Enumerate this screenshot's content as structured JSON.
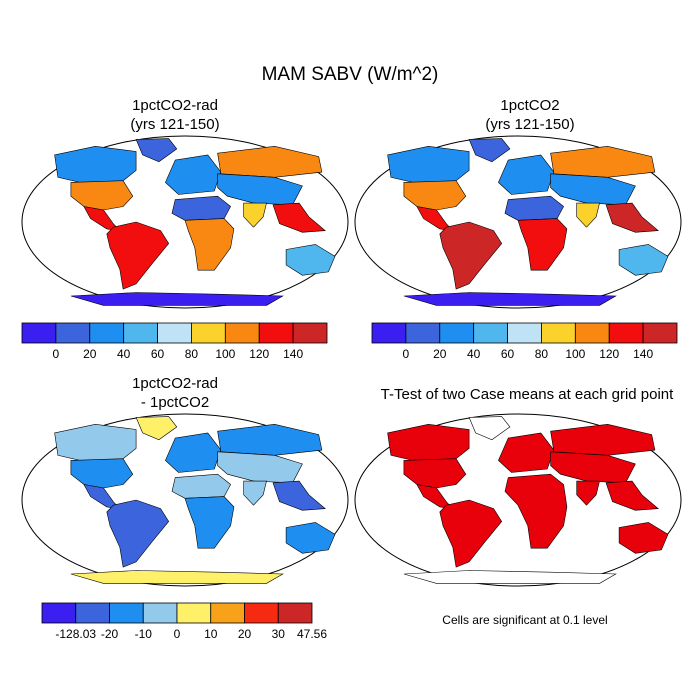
{
  "title": "MAM SABV (W/m^2)",
  "colors": {
    "land_outline": "#000000",
    "ocean": "#ffffff",
    "significant": "#e8000b"
  },
  "chart_data": [
    {
      "type": "heatmap",
      "panel": "top-left",
      "title_line1": "1pctCO2-rad",
      "title_line2": "(yrs 121-150)",
      "colorbar": {
        "tick_labels": [
          "0",
          "20",
          "40",
          "60",
          "80",
          "100",
          "120",
          "140"
        ],
        "colors": [
          "#3a1ff0",
          "#3c64dc",
          "#1e8ff0",
          "#50b6ee",
          "#c0e2f5",
          "#fbd12b",
          "#f88812",
          "#f20e0e",
          "#cc2626"
        ]
      },
      "regions": [
        {
          "name": "Antarctica",
          "class": 0
        },
        {
          "name": "Greenland",
          "class": 1
        },
        {
          "name": "Canada",
          "class": 2
        },
        {
          "name": "United States",
          "class": 6
        },
        {
          "name": "Mexico",
          "class": 7
        },
        {
          "name": "South America",
          "class": 7
        },
        {
          "name": "Sahara",
          "class": 1
        },
        {
          "name": "Central Africa",
          "class": 6
        },
        {
          "name": "Europe",
          "class": 2
        },
        {
          "name": "Siberia",
          "class": 6
        },
        {
          "name": "Central Asia",
          "class": 2
        },
        {
          "name": "India",
          "class": 5
        },
        {
          "name": "Southeast Asia",
          "class": 7
        },
        {
          "name": "Australia",
          "class": 3
        }
      ]
    },
    {
      "type": "heatmap",
      "panel": "top-right",
      "title_line1": "1pctCO2",
      "title_line2": "(yrs 121-150)",
      "colorbar": {
        "tick_labels": [
          "0",
          "20",
          "40",
          "60",
          "80",
          "100",
          "120",
          "140"
        ],
        "colors": [
          "#3a1ff0",
          "#3c64dc",
          "#1e8ff0",
          "#50b6ee",
          "#c0e2f5",
          "#fbd12b",
          "#f88812",
          "#f20e0e",
          "#cc2626"
        ]
      },
      "regions": [
        {
          "name": "Antarctica",
          "class": 0
        },
        {
          "name": "Greenland",
          "class": 1
        },
        {
          "name": "Canada",
          "class": 2
        },
        {
          "name": "United States",
          "class": 6
        },
        {
          "name": "Mexico",
          "class": 7
        },
        {
          "name": "South America",
          "class": 8
        },
        {
          "name": "Sahara",
          "class": 1
        },
        {
          "name": "Central Africa",
          "class": 7
        },
        {
          "name": "Europe",
          "class": 2
        },
        {
          "name": "Siberia",
          "class": 6
        },
        {
          "name": "Central Asia",
          "class": 2
        },
        {
          "name": "India",
          "class": 5
        },
        {
          "name": "Southeast Asia",
          "class": 8
        },
        {
          "name": "Australia",
          "class": 3
        }
      ]
    },
    {
      "type": "heatmap",
      "panel": "bottom-left",
      "title_line1": "1pctCO2-rad",
      "title_line2": "- 1pctCO2",
      "colorbar": {
        "tick_labels": [
          "-128.03",
          "-20",
          "-10",
          "0",
          "10",
          "20",
          "30",
          "47.56"
        ],
        "colors": [
          "#3a1ff0",
          "#3c64dc",
          "#1e8ff0",
          "#93c9ea",
          "#fff06a",
          "#f8a21a",
          "#f52a10",
          "#cc2626"
        ]
      },
      "regions": [
        {
          "name": "Antarctica",
          "class": 4
        },
        {
          "name": "Greenland",
          "class": 4
        },
        {
          "name": "Canada",
          "class": 3
        },
        {
          "name": "United States",
          "class": 2
        },
        {
          "name": "Mexico",
          "class": 1
        },
        {
          "name": "South America",
          "class": 1
        },
        {
          "name": "Sahara",
          "class": 3
        },
        {
          "name": "Central Africa",
          "class": 2
        },
        {
          "name": "Europe",
          "class": 2
        },
        {
          "name": "Siberia",
          "class": 2
        },
        {
          "name": "Central Asia",
          "class": 3
        },
        {
          "name": "India",
          "class": 3
        },
        {
          "name": "Southeast Asia",
          "class": 1
        },
        {
          "name": "Australia",
          "class": 2
        }
      ]
    },
    {
      "type": "heatmap",
      "panel": "bottom-right",
      "title": "T-Test of two Case means at each grid point",
      "note": "Cells are significant at 0.1 level",
      "significant_regions": [
        "Canada",
        "United States",
        "Mexico",
        "South America",
        "Africa",
        "Europe",
        "Siberia",
        "Central Asia",
        "India",
        "Southeast Asia",
        "Australia"
      ],
      "not_significant_regions": [
        "Antarctica",
        "Greenland"
      ]
    }
  ]
}
